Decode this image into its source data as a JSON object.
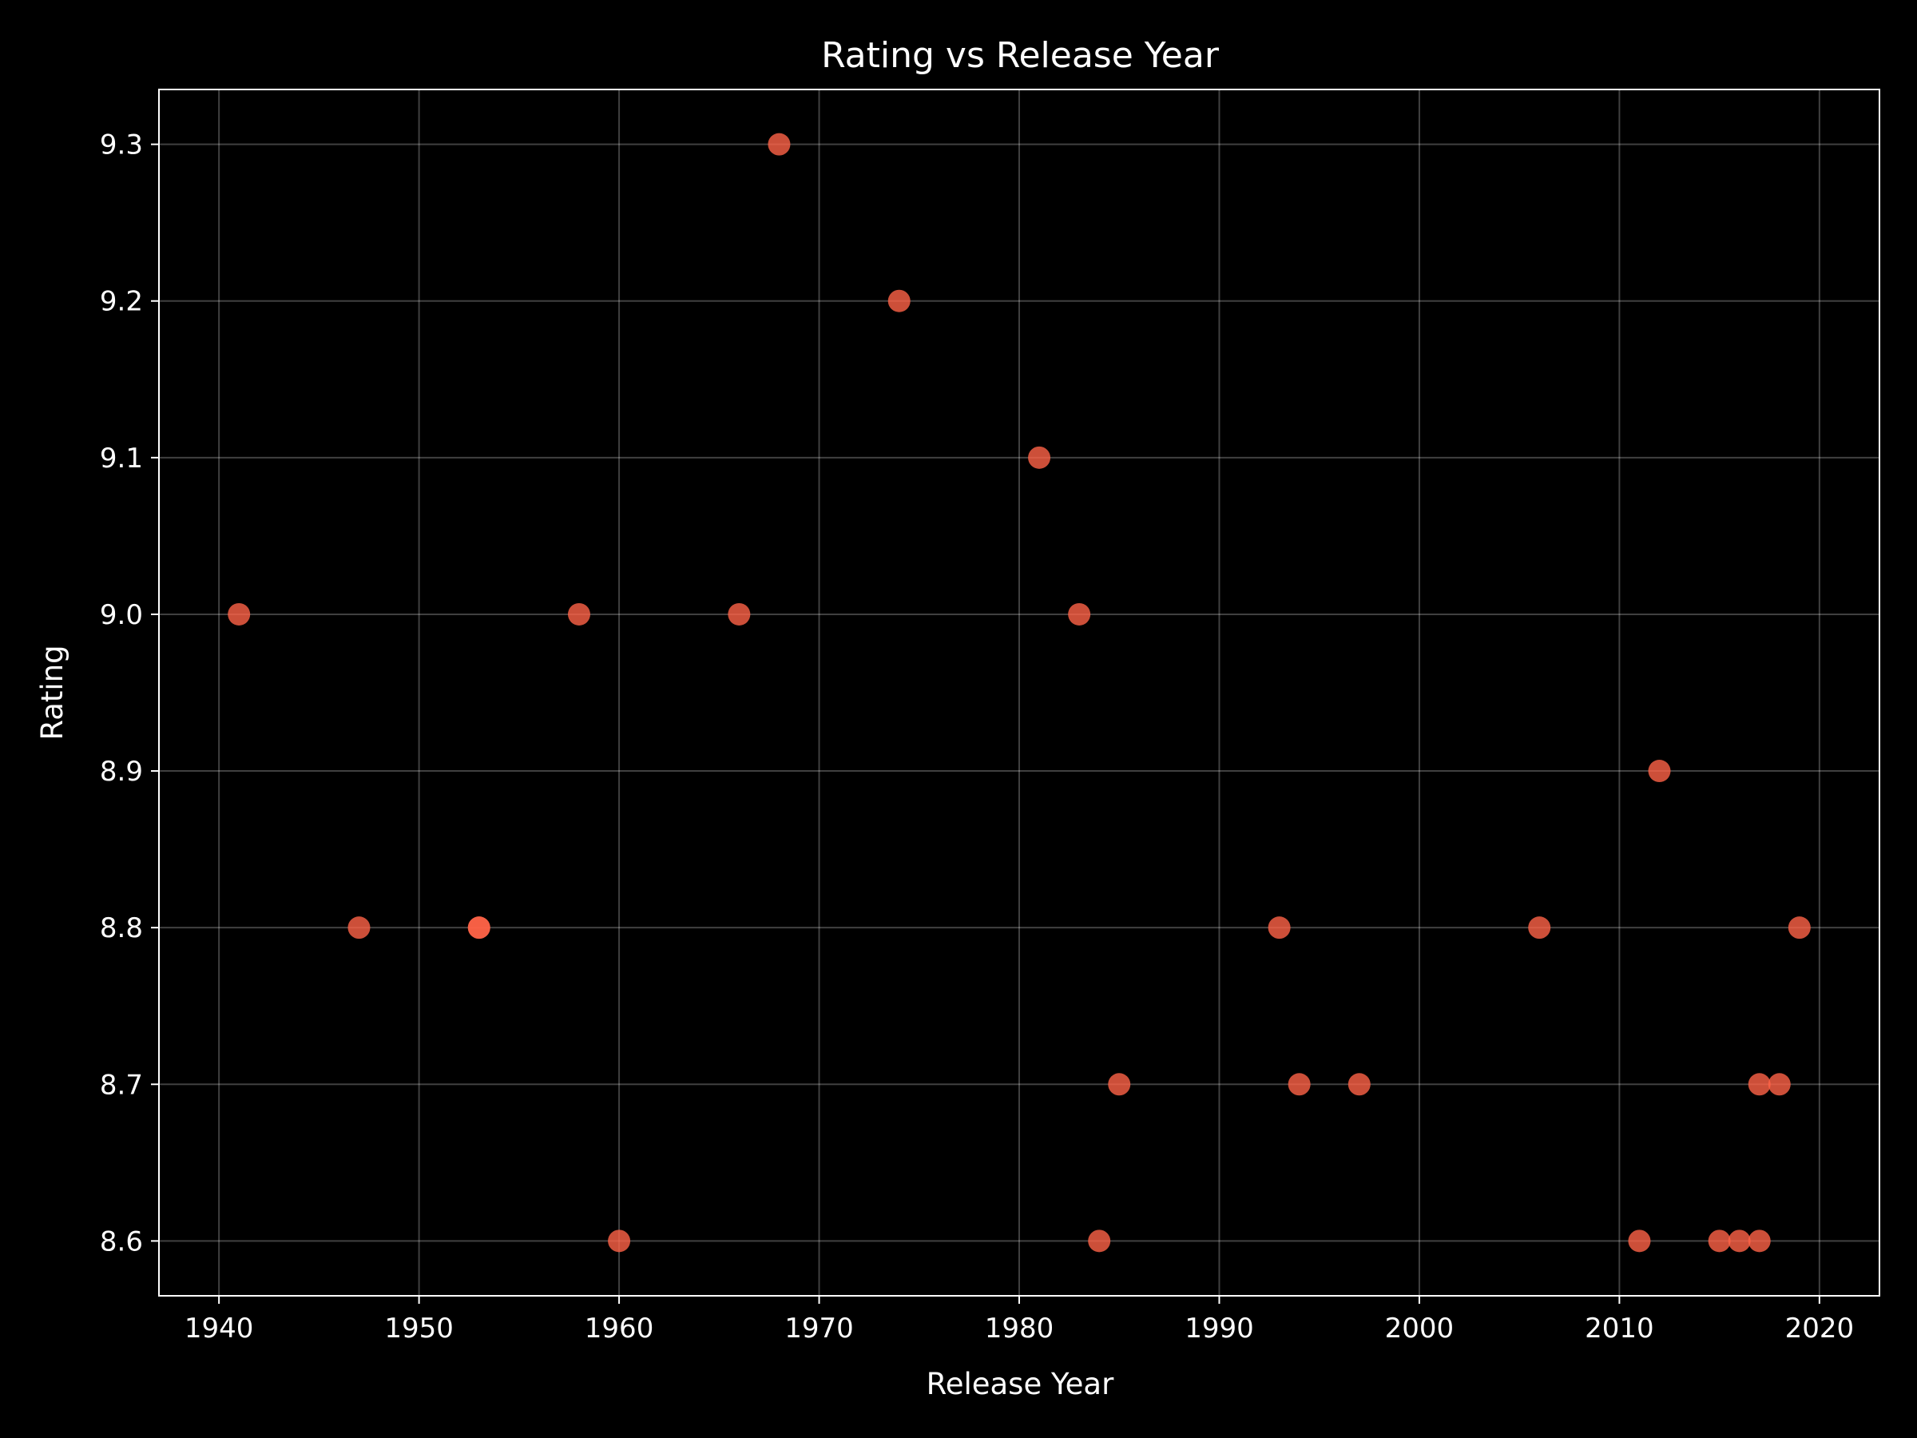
{
  "chart_data": {
    "type": "scatter",
    "title": "Rating vs Release Year",
    "xlabel": "Release Year",
    "ylabel": "Rating",
    "xlim": [
      1937,
      2023
    ],
    "ylim": [
      8.565,
      9.335
    ],
    "xticks": [
      1940,
      1950,
      1960,
      1970,
      1980,
      1990,
      2000,
      2010,
      2020
    ],
    "yticks": [
      8.6,
      8.7,
      8.8,
      8.9,
      9.0,
      9.1,
      9.2,
      9.3
    ],
    "grid": true,
    "legend": "none",
    "background_color": "#000000",
    "text_color": "#ffffff",
    "point_color": "#ff6347",
    "series": [
      {
        "points": [
          {
            "x": 1941,
            "y": 9.0
          },
          {
            "x": 1947,
            "y": 8.8
          },
          {
            "x": 1953,
            "y": 8.8
          },
          {
            "x": 1953,
            "y": 8.8
          },
          {
            "x": 1958,
            "y": 9.0
          },
          {
            "x": 1960,
            "y": 8.6
          },
          {
            "x": 1966,
            "y": 9.0
          },
          {
            "x": 1968,
            "y": 9.3
          },
          {
            "x": 1974,
            "y": 9.2
          },
          {
            "x": 1981,
            "y": 9.1
          },
          {
            "x": 1983,
            "y": 9.0
          },
          {
            "x": 1984,
            "y": 8.6
          },
          {
            "x": 1985,
            "y": 8.7
          },
          {
            "x": 1993,
            "y": 8.8
          },
          {
            "x": 1994,
            "y": 8.7
          },
          {
            "x": 1997,
            "y": 8.7
          },
          {
            "x": 2006,
            "y": 8.8
          },
          {
            "x": 2011,
            "y": 8.6
          },
          {
            "x": 2012,
            "y": 8.9
          },
          {
            "x": 2015,
            "y": 8.6
          },
          {
            "x": 2016,
            "y": 8.6
          },
          {
            "x": 2017,
            "y": 8.6
          },
          {
            "x": 2017,
            "y": 8.7
          },
          {
            "x": 2018,
            "y": 8.7
          },
          {
            "x": 2019,
            "y": 8.8
          }
        ]
      }
    ]
  }
}
